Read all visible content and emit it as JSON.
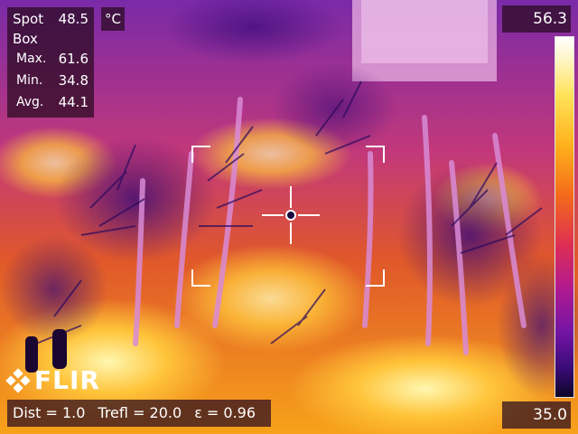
{
  "measurement": {
    "spot_label": "Spot",
    "spot_value": "48.5",
    "box_label": "Box",
    "max_label": "Max.",
    "max_value": "61.6",
    "min_label": "Min.",
    "min_value": "34.8",
    "avg_label": "Avg.",
    "avg_value": "44.1"
  },
  "unit": "°C",
  "scale": {
    "max": "56.3",
    "min": "35.0"
  },
  "params": {
    "dist": "Dist = 1.0",
    "trefl": "Trefl = 20.0",
    "emissivity": "ε = 0.96"
  },
  "brand": {
    "logo_text": "FLIR"
  },
  "colors": {
    "panel_bg": "#2a0a1e",
    "palette_hot": "#ffffff",
    "palette_warm": "#ffb21c",
    "palette_mid": "#de2e55",
    "palette_cool": "#7414a4",
    "palette_cold": "#0d0626"
  }
}
